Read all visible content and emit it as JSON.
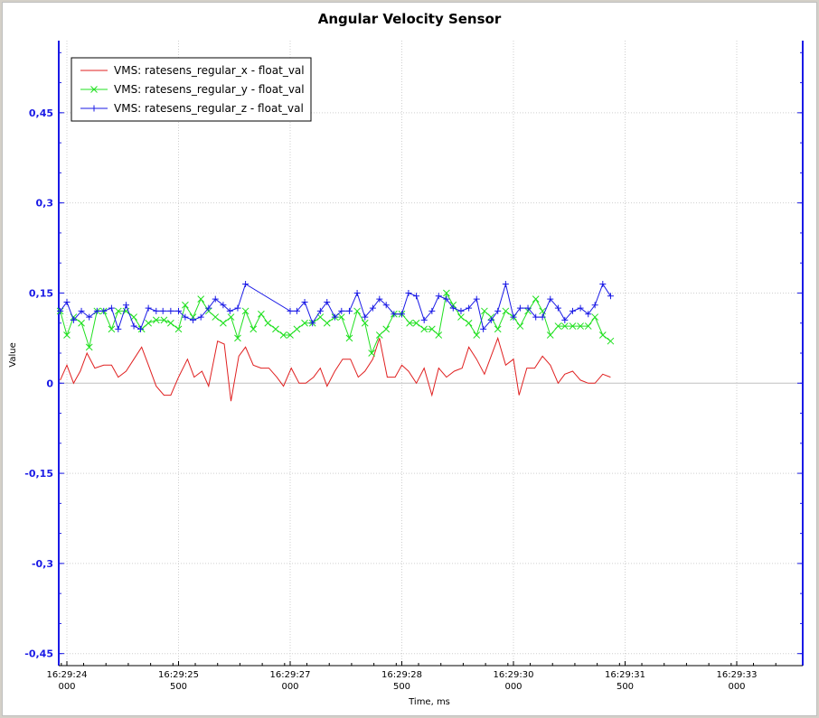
{
  "chart_data": {
    "type": "line",
    "title": "Angular Velocity Sensor",
    "xlabel": "Time, ms",
    "ylabel": "Value",
    "ylim": [
      -0.47,
      0.57
    ],
    "xlim": [
      -0.2,
      6.5
    ],
    "grid": true,
    "legend_position": "top-left",
    "y_ticks": [
      {
        "value": 0.45,
        "label": "0,45"
      },
      {
        "value": 0.3,
        "label": "0,3"
      },
      {
        "value": 0.15,
        "label": "0,15"
      },
      {
        "value": 0,
        "label": "0"
      },
      {
        "value": -0.15,
        "label": "-0,15"
      },
      {
        "value": -0.3,
        "label": "-0,3"
      },
      {
        "value": -0.45,
        "label": "-0,45"
      }
    ],
    "x_ticks": [
      {
        "value": 0,
        "label": "16:29:24",
        "sub": "000"
      },
      {
        "value": 1,
        "label": "16:29:25",
        "sub": "500"
      },
      {
        "value": 2,
        "label": "16:29:27",
        "sub": "000"
      },
      {
        "value": 3,
        "label": "16:29:28",
        "sub": "500"
      },
      {
        "value": 4,
        "label": "16:29:30",
        "sub": "000"
      },
      {
        "value": 5,
        "label": "16:29:31",
        "sub": "500"
      },
      {
        "value": 6,
        "label": "16:29:33",
        "sub": "000"
      }
    ],
    "series": [
      {
        "name": "VMS: ratesens_regular_x - float_val",
        "color": "#e02020",
        "marker": "none",
        "points": [
          [
            -0.06,
            0.005
          ],
          [
            0.0,
            0.03
          ],
          [
            0.06,
            0.0
          ],
          [
            0.12,
            0.02
          ],
          [
            0.18,
            0.05
          ],
          [
            0.25,
            0.025
          ],
          [
            0.33,
            0.03
          ],
          [
            0.4,
            0.03
          ],
          [
            0.46,
            0.01
          ],
          [
            0.53,
            0.02
          ],
          [
            0.6,
            0.04
          ],
          [
            0.67,
            0.06
          ],
          [
            0.73,
            0.03
          ],
          [
            0.8,
            -0.005
          ],
          [
            0.87,
            -0.02
          ],
          [
            0.93,
            -0.02
          ],
          [
            1.0,
            0.01
          ],
          [
            1.08,
            0.04
          ],
          [
            1.14,
            0.01
          ],
          [
            1.21,
            0.02
          ],
          [
            1.27,
            -0.005
          ],
          [
            1.35,
            0.07
          ],
          [
            1.41,
            0.065
          ],
          [
            1.47,
            -0.03
          ],
          [
            1.54,
            0.045
          ],
          [
            1.6,
            0.06
          ],
          [
            1.67,
            0.03
          ],
          [
            1.74,
            0.025
          ],
          [
            1.81,
            0.025
          ],
          [
            1.88,
            0.01
          ],
          [
            1.94,
            -0.005
          ],
          [
            2.01,
            0.025
          ],
          [
            2.08,
            0.0
          ],
          [
            2.14,
            0.0
          ],
          [
            2.21,
            0.01
          ],
          [
            2.27,
            0.025
          ],
          [
            2.33,
            -0.005
          ],
          [
            2.4,
            0.02
          ],
          [
            2.47,
            0.04
          ],
          [
            2.54,
            0.04
          ],
          [
            2.61,
            0.01
          ],
          [
            2.67,
            0.02
          ],
          [
            2.74,
            0.04
          ],
          [
            2.8,
            0.075
          ],
          [
            2.87,
            0.01
          ],
          [
            2.94,
            0.01
          ],
          [
            3.0,
            0.03
          ],
          [
            3.06,
            0.02
          ],
          [
            3.13,
            0.0
          ],
          [
            3.2,
            0.025
          ],
          [
            3.27,
            -0.02
          ],
          [
            3.33,
            0.025
          ],
          [
            3.4,
            0.01
          ],
          [
            3.47,
            0.02
          ],
          [
            3.54,
            0.025
          ],
          [
            3.6,
            0.06
          ],
          [
            3.67,
            0.04
          ],
          [
            3.74,
            0.015
          ],
          [
            3.8,
            0.045
          ],
          [
            3.86,
            0.075
          ],
          [
            3.93,
            0.03
          ],
          [
            4.0,
            0.04
          ],
          [
            4.05,
            -0.02
          ],
          [
            4.12,
            0.025
          ],
          [
            4.19,
            0.025
          ],
          [
            4.26,
            0.045
          ],
          [
            4.33,
            0.03
          ],
          [
            4.4,
            0.0
          ],
          [
            4.46,
            0.015
          ],
          [
            4.53,
            0.02
          ],
          [
            4.6,
            0.005
          ],
          [
            4.67,
            0.0
          ],
          [
            4.73,
            0.0
          ],
          [
            4.8,
            0.015
          ],
          [
            4.87,
            0.01
          ]
        ]
      },
      {
        "name": "VMS: ratesens_regular_y - float_val",
        "color": "#20e020",
        "marker": "x",
        "points": [
          [
            -0.06,
            0.12
          ],
          [
            0.0,
            0.08
          ],
          [
            0.06,
            0.11
          ],
          [
            0.13,
            0.1
          ],
          [
            0.2,
            0.06
          ],
          [
            0.27,
            0.12
          ],
          [
            0.33,
            0.12
          ],
          [
            0.4,
            0.09
          ],
          [
            0.46,
            0.12
          ],
          [
            0.53,
            0.12
          ],
          [
            0.6,
            0.11
          ],
          [
            0.67,
            0.09
          ],
          [
            0.73,
            0.1
          ],
          [
            0.8,
            0.105
          ],
          [
            0.87,
            0.105
          ],
          [
            0.93,
            0.1
          ],
          [
            1.0,
            0.09
          ],
          [
            1.06,
            0.13
          ],
          [
            1.13,
            0.11
          ],
          [
            1.2,
            0.14
          ],
          [
            1.27,
            0.12
          ],
          [
            1.33,
            0.11
          ],
          [
            1.4,
            0.1
          ],
          [
            1.47,
            0.11
          ],
          [
            1.53,
            0.075
          ],
          [
            1.6,
            0.12
          ],
          [
            1.67,
            0.09
          ],
          [
            1.74,
            0.115
          ],
          [
            1.8,
            0.1
          ],
          [
            1.87,
            0.09
          ],
          [
            1.94,
            0.08
          ],
          [
            2.0,
            0.08
          ],
          [
            2.06,
            0.09
          ],
          [
            2.13,
            0.1
          ],
          [
            2.2,
            0.1
          ],
          [
            2.27,
            0.11
          ],
          [
            2.33,
            0.1
          ],
          [
            2.4,
            0.11
          ],
          [
            2.46,
            0.11
          ],
          [
            2.53,
            0.075
          ],
          [
            2.6,
            0.12
          ],
          [
            2.67,
            0.1
          ],
          [
            2.73,
            0.05
          ],
          [
            2.8,
            0.08
          ],
          [
            2.86,
            0.09
          ],
          [
            2.93,
            0.115
          ],
          [
            3.0,
            0.115
          ],
          [
            3.07,
            0.1
          ],
          [
            3.13,
            0.1
          ],
          [
            3.2,
            0.09
          ],
          [
            3.27,
            0.09
          ],
          [
            3.33,
            0.08
          ],
          [
            3.4,
            0.15
          ],
          [
            3.46,
            0.13
          ],
          [
            3.53,
            0.11
          ],
          [
            3.6,
            0.1
          ],
          [
            3.67,
            0.08
          ],
          [
            3.74,
            0.12
          ],
          [
            3.8,
            0.11
          ],
          [
            3.86,
            0.09
          ],
          [
            3.93,
            0.12
          ],
          [
            4.0,
            0.11
          ],
          [
            4.06,
            0.095
          ],
          [
            4.13,
            0.12
          ],
          [
            4.2,
            0.14
          ],
          [
            4.26,
            0.12
          ],
          [
            4.33,
            0.08
          ],
          [
            4.4,
            0.095
          ],
          [
            4.46,
            0.095
          ],
          [
            4.53,
            0.095
          ],
          [
            4.6,
            0.095
          ],
          [
            4.67,
            0.095
          ],
          [
            4.73,
            0.11
          ],
          [
            4.8,
            0.08
          ],
          [
            4.87,
            0.07
          ]
        ]
      },
      {
        "name": "VMS: ratesens_regular_z - float_val",
        "color": "#1a1ae6",
        "marker": "+",
        "points": [
          [
            -0.06,
            0.12
          ],
          [
            0.0,
            0.135
          ],
          [
            0.06,
            0.105
          ],
          [
            0.13,
            0.12
          ],
          [
            0.2,
            0.11
          ],
          [
            0.27,
            0.12
          ],
          [
            0.33,
            0.12
          ],
          [
            0.4,
            0.125
          ],
          [
            0.46,
            0.09
          ],
          [
            0.53,
            0.13
          ],
          [
            0.6,
            0.095
          ],
          [
            0.66,
            0.09
          ],
          [
            0.73,
            0.125
          ],
          [
            0.8,
            0.12
          ],
          [
            0.86,
            0.12
          ],
          [
            0.93,
            0.12
          ],
          [
            1.0,
            0.12
          ],
          [
            1.06,
            0.11
          ],
          [
            1.13,
            0.105
          ],
          [
            1.2,
            0.11
          ],
          [
            1.27,
            0.125
          ],
          [
            1.33,
            0.14
          ],
          [
            1.4,
            0.13
          ],
          [
            1.46,
            0.12
          ],
          [
            1.53,
            0.125
          ],
          [
            1.6,
            0.165
          ],
          [
            2.0,
            0.12
          ],
          [
            2.06,
            0.12
          ],
          [
            2.13,
            0.135
          ],
          [
            2.2,
            0.1
          ],
          [
            2.27,
            0.12
          ],
          [
            2.33,
            0.135
          ],
          [
            2.4,
            0.11
          ],
          [
            2.46,
            0.12
          ],
          [
            2.53,
            0.12
          ],
          [
            2.6,
            0.15
          ],
          [
            2.67,
            0.11
          ],
          [
            2.74,
            0.125
          ],
          [
            2.8,
            0.14
          ],
          [
            2.86,
            0.13
          ],
          [
            2.93,
            0.115
          ],
          [
            3.0,
            0.115
          ],
          [
            3.06,
            0.15
          ],
          [
            3.13,
            0.145
          ],
          [
            3.2,
            0.105
          ],
          [
            3.27,
            0.12
          ],
          [
            3.33,
            0.145
          ],
          [
            3.4,
            0.14
          ],
          [
            3.46,
            0.125
          ],
          [
            3.53,
            0.12
          ],
          [
            3.6,
            0.125
          ],
          [
            3.67,
            0.14
          ],
          [
            3.73,
            0.09
          ],
          [
            3.8,
            0.105
          ],
          [
            3.86,
            0.12
          ],
          [
            3.93,
            0.165
          ],
          [
            4.0,
            0.11
          ],
          [
            4.06,
            0.125
          ],
          [
            4.13,
            0.125
          ],
          [
            4.2,
            0.11
          ],
          [
            4.26,
            0.11
          ],
          [
            4.33,
            0.14
          ],
          [
            4.4,
            0.125
          ],
          [
            4.46,
            0.105
          ],
          [
            4.53,
            0.12
          ],
          [
            4.6,
            0.125
          ],
          [
            4.67,
            0.115
          ],
          [
            4.73,
            0.13
          ],
          [
            4.8,
            0.165
          ],
          [
            4.87,
            0.145
          ]
        ]
      }
    ]
  }
}
